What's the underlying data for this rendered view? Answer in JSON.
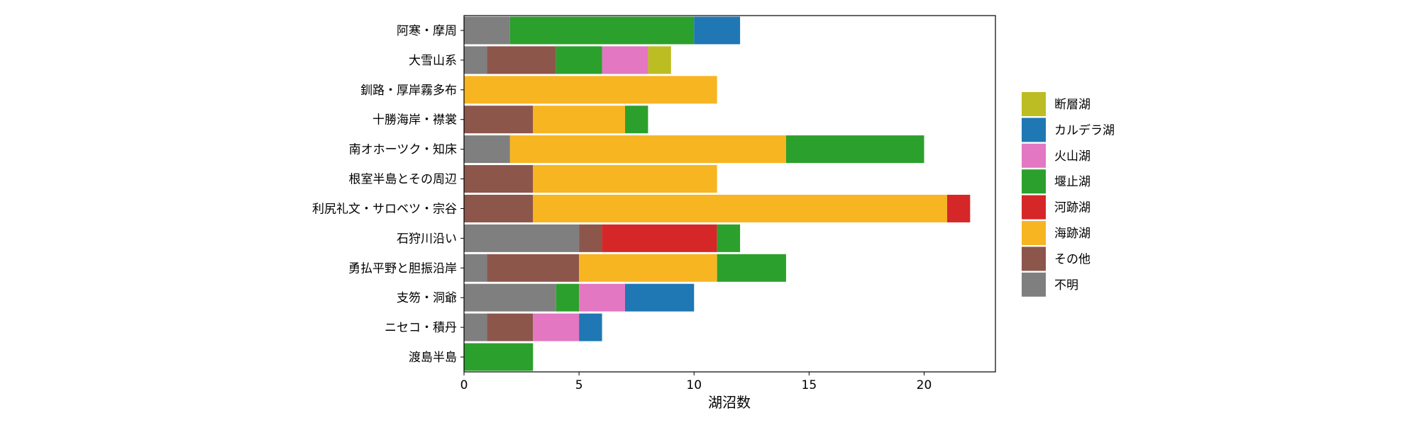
{
  "chart_data": {
    "type": "bar",
    "orientation": "horizontal",
    "stacked": true,
    "title": "",
    "xlabel": "湖沼数",
    "ylabel": "",
    "xlim": [
      0,
      23.1
    ],
    "x_ticks": [
      0,
      5,
      10,
      15,
      20
    ],
    "grid": false,
    "legend_position": "right",
    "categories": [
      "阿寒・摩周",
      "大雪山系",
      "釧路・厚岸霧多布",
      "十勝海岸・襟裳",
      "南オホーツク・知床",
      "根室半島とその周辺",
      "利尻礼文・サロベツ・宗谷",
      "石狩川沿い",
      "勇払平野と胆振沿岸",
      "支笏・洞爺",
      "ニセコ・積丹",
      "渡島半島"
    ],
    "series": [
      {
        "name": "不明",
        "color": "#7f7f7f",
        "values": [
          2,
          1,
          0,
          0,
          2,
          0,
          0,
          5,
          1,
          4,
          1,
          0
        ]
      },
      {
        "name": "その他",
        "color": "#8c564b",
        "values": [
          0,
          3,
          0,
          3,
          0,
          3,
          3,
          1,
          4,
          0,
          2,
          0
        ]
      },
      {
        "name": "海跡湖",
        "color": "#f7b522",
        "values": [
          0,
          0,
          11,
          4,
          12,
          8,
          18,
          0,
          6,
          0,
          0,
          0
        ]
      },
      {
        "name": "河跡湖",
        "color": "#d62728",
        "values": [
          0,
          0,
          0,
          0,
          0,
          0,
          1,
          5,
          0,
          0,
          0,
          0
        ]
      },
      {
        "name": "堰止湖",
        "color": "#2ca02c",
        "values": [
          8,
          2,
          0,
          1,
          6,
          0,
          0,
          1,
          3,
          1,
          0,
          3
        ]
      },
      {
        "name": "火山湖",
        "color": "#e377c2",
        "values": [
          0,
          2,
          0,
          0,
          0,
          0,
          0,
          0,
          0,
          2,
          2,
          0
        ]
      },
      {
        "name": "カルデラ湖",
        "color": "#1f77b4",
        "values": [
          2,
          0,
          0,
          0,
          0,
          0,
          0,
          0,
          0,
          3,
          1,
          0
        ]
      },
      {
        "name": "断層湖",
        "color": "#bcbd22",
        "values": [
          0,
          1,
          0,
          0,
          0,
          0,
          0,
          0,
          0,
          0,
          0,
          0
        ]
      }
    ],
    "legend_order": [
      "断層湖",
      "カルデラ湖",
      "火山湖",
      "堰止湖",
      "河跡湖",
      "海跡湖",
      "その他",
      "不明"
    ]
  }
}
